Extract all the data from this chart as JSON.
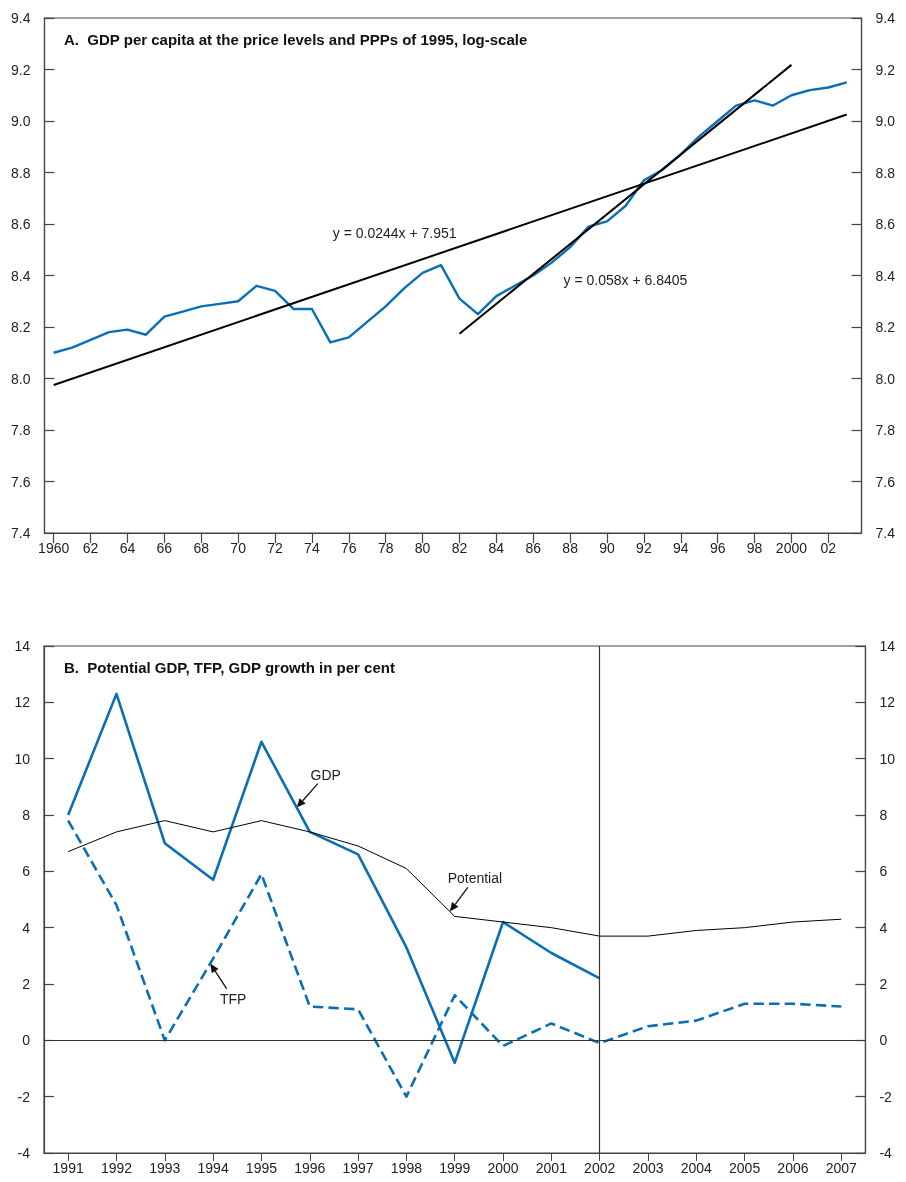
{
  "chart_data": [
    {
      "type": "line",
      "title": "A.  GDP per capita at the price levels and PPPs of 1995, log-scale",
      "xlim": [
        1959.5,
        2003.8
      ],
      "xticks": [
        1960,
        {
          "value": 1962,
          "label": "62"
        },
        {
          "value": 1964,
          "label": "64"
        },
        {
          "value": 1966,
          "label": "66"
        },
        {
          "value": 1968,
          "label": "68"
        },
        {
          "value": 1970,
          "label": "70"
        },
        {
          "value": 1972,
          "label": "72"
        },
        {
          "value": 1974,
          "label": "74"
        },
        {
          "value": 1976,
          "label": "76"
        },
        {
          "value": 1978,
          "label": "78"
        },
        {
          "value": 1980,
          "label": "80"
        },
        {
          "value": 1982,
          "label": "82"
        },
        {
          "value": 1984,
          "label": "84"
        },
        {
          "value": 1986,
          "label": "86"
        },
        {
          "value": 1988,
          "label": "88"
        },
        {
          "value": 1990,
          "label": "90"
        },
        {
          "value": 1992,
          "label": "92"
        },
        {
          "value": 1994,
          "label": "94"
        },
        {
          "value": 1996,
          "label": "96"
        },
        {
          "value": 1998,
          "label": "98"
        },
        2000,
        {
          "value": 2002,
          "label": "02"
        }
      ],
      "ylim": [
        7.4,
        9.4
      ],
      "yticks": [
        7.4,
        7.6,
        7.8,
        {
          "value": 8,
          "label": "8.0"
        },
        8.2,
        8.4,
        8.6,
        8.8,
        {
          "value": 9,
          "label": "9.0"
        },
        9.2,
        9.4
      ],
      "y2lim": [
        7.4,
        9.4
      ],
      "y2ticks": [
        7.4,
        7.6,
        7.8,
        {
          "value": 8,
          "label": "8.0"
        },
        8.2,
        8.4,
        8.6,
        8.8,
        {
          "value": 9,
          "label": "9.0"
        },
        9.2,
        9.4
      ],
      "marker": "none",
      "annotations": [
        "y = 0.0244x + 7.951",
        "y = 0.058x + 6.8405"
      ],
      "series": [
        {
          "color": "#0a6eb4",
          "x": [
            1960,
            1961,
            1962,
            1963,
            1964,
            1965,
            1966,
            1967,
            1968,
            1969,
            1970,
            1971,
            1972,
            1973,
            1974,
            1975,
            1976,
            1977,
            1978,
            1979,
            1980,
            1981,
            1982,
            1983,
            1984,
            1985,
            1986,
            1987,
            1988,
            1989,
            1990,
            1991,
            1992,
            1993,
            1994,
            1995,
            1996,
            1997,
            1998,
            1999,
            2000,
            2001,
            2002,
            2003
          ],
          "values": [
            8.1,
            8.12,
            8.15,
            8.18,
            8.19,
            8.17,
            8.24,
            8.26,
            8.28,
            8.29,
            8.3,
            8.36,
            8.34,
            8.27,
            8.27,
            8.14,
            8.16,
            8.22,
            8.28,
            8.35,
            8.41,
            8.44,
            8.31,
            8.25,
            8.32,
            8.36,
            8.4,
            8.45,
            8.51,
            8.59,
            8.61,
            8.67,
            8.77,
            8.81,
            8.87,
            8.94,
            9.0,
            9.06,
            9.08,
            9.06,
            9.1,
            9.12,
            9.13,
            9.15
          ]
        },
        {
          "color": "#000000",
          "x": [
            1960,
            2003
          ],
          "values": [
            7.975,
            9.025
          ]
        },
        {
          "color": "#000000",
          "x": [
            1982,
            2000
          ],
          "values": [
            8.174,
            9.218
          ]
        }
      ]
    },
    {
      "type": "line",
      "title": "B.  Potential GDP, TFP, GDP growth in per cent",
      "categories": [
        "1991",
        "1992",
        "1993",
        "1994",
        "1995",
        "1996",
        "1997",
        "1998",
        "1999",
        "2000",
        "2001",
        "2002",
        "2003",
        "2004",
        "2005",
        "2006",
        "2007"
      ],
      "ylim": [
        -4,
        14
      ],
      "yticks": [
        -4,
        -2,
        0,
        2,
        4,
        6,
        8,
        10,
        12,
        14
      ],
      "y2lim": [
        -4,
        14
      ],
      "y2ticks": [
        -4,
        -2,
        0,
        2,
        4,
        6,
        8,
        10,
        12,
        14
      ],
      "marker": "none",
      "ref_lines": [
        {
          "axis": "y",
          "value": 0,
          "color": "#333333"
        },
        {
          "axis": "x",
          "value": "2002",
          "color": "#333333"
        }
      ],
      "series": [
        {
          "name": "GDP",
          "color": "#0a6eb4",
          "line_style": "solid",
          "values": [
            8.0,
            12.3,
            7.0,
            5.7,
            10.6,
            7.4,
            6.6,
            3.3,
            -0.8,
            4.2,
            3.1,
            2.2,
            null,
            null,
            null,
            null,
            null
          ]
        },
        {
          "name": "Potential",
          "color": "#000000",
          "line_style": "solid",
          "values": [
            6.7,
            7.4,
            7.8,
            7.4,
            7.8,
            7.4,
            6.9,
            6.1,
            4.4,
            4.2,
            4.0,
            3.7,
            3.7,
            3.9,
            4.0,
            4.2,
            4.3
          ]
        },
        {
          "name": "TFP",
          "color": "#0a6eb4",
          "line_style": "dashed",
          "values": [
            7.8,
            4.8,
            0.0,
            2.9,
            5.9,
            1.2,
            1.1,
            -2.0,
            1.6,
            -0.2,
            0.6,
            -0.1,
            0.5,
            0.7,
            1.3,
            1.3,
            1.2
          ]
        }
      ]
    }
  ]
}
